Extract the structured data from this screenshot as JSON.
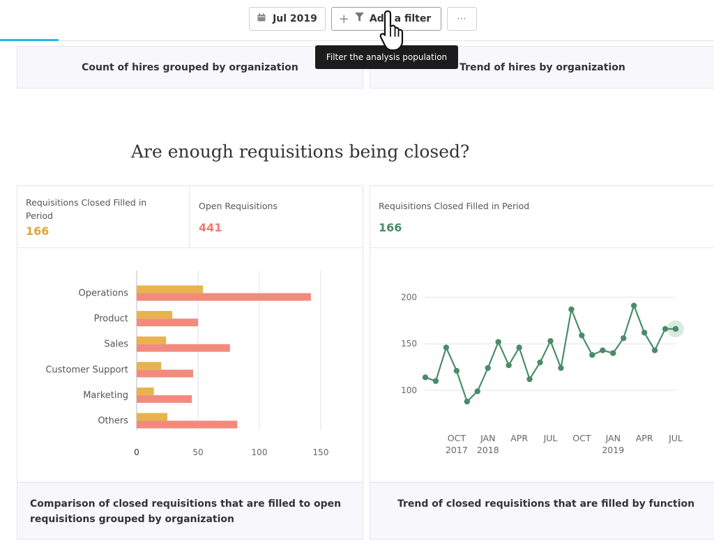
{
  "toolbar": {
    "date_label": "Jul 2019",
    "filter_label": "Add a filter",
    "more_label": "⋯",
    "icons": {
      "date": "calendar-icon",
      "filter": "funnel-icon",
      "plus": "plus-icon",
      "cursor": "hand-pointer-icon"
    }
  },
  "tooltip": {
    "text": "Filter the analysis population"
  },
  "top_cards": {
    "left_title": "Count of hires grouped by organization",
    "right_title": "Trend of hires by organization"
  },
  "section": {
    "heading": "Are enough requisitions being closed?"
  },
  "left_card": {
    "metric1": {
      "label": "Requisitions Closed Filled in Period",
      "value": "166"
    },
    "metric2": {
      "label": "Open Requisitions",
      "value": "441"
    },
    "footer": "Comparison of closed requisitions that are filled to open requisitions grouped by organization"
  },
  "right_card": {
    "metric": {
      "label": "Requisitions Closed Filled in Period",
      "value": "166"
    },
    "footer": "Trend of closed requisitions that are filled by function"
  },
  "colors": {
    "closed": "#e8b34f",
    "open": "#f28b7d",
    "trend": "#4a8c68",
    "accent": "#29b6e8",
    "closed_value": "#e0a43c",
    "open_value": "#ef7a6e",
    "trend_value": "#4a8c68"
  },
  "chart_data": [
    {
      "type": "bar",
      "orientation": "horizontal",
      "categories": [
        "Operations",
        "Product",
        "Sales",
        "Customer Support",
        "Marketing",
        "Others"
      ],
      "series": [
        {
          "name": "Requisitions Closed Filled in Period",
          "values": [
            54,
            29,
            24,
            20,
            14,
            25
          ]
        },
        {
          "name": "Open Requisitions",
          "values": [
            142,
            50,
            76,
            46,
            45,
            82
          ]
        }
      ],
      "xlim": [
        0,
        150
      ],
      "xticks": [
        0,
        50,
        100,
        150
      ],
      "grid": true
    },
    {
      "type": "line",
      "x": [
        "2017-07",
        "2017-08",
        "2017-09",
        "2017-10",
        "2017-11",
        "2017-12",
        "2018-01",
        "2018-02",
        "2018-03",
        "2018-04",
        "2018-05",
        "2018-06",
        "2018-07",
        "2018-08",
        "2018-09",
        "2018-10",
        "2018-11",
        "2018-12",
        "2019-01",
        "2019-02",
        "2019-03",
        "2019-04",
        "2019-05",
        "2019-06",
        "2019-07"
      ],
      "series": [
        {
          "name": "Requisitions Closed Filled in Period",
          "values": [
            114,
            110,
            146,
            121,
            88,
            99,
            124,
            152,
            127,
            146,
            112,
            130,
            153,
            124,
            187,
            159,
            138,
            143,
            140,
            156,
            191,
            162,
            143,
            166,
            166
          ]
        }
      ],
      "ylim": [
        80,
        200
      ],
      "yticks": [
        100,
        150,
        200
      ],
      "xtick_labels": [
        {
          "month": "OCT",
          "year": "2017"
        },
        {
          "month": "JAN",
          "year": "2018"
        },
        {
          "month": "APR",
          "year": ""
        },
        {
          "month": "JUL",
          "year": ""
        },
        {
          "month": "OCT",
          "year": ""
        },
        {
          "month": "JAN",
          "year": "2019"
        },
        {
          "month": "APR",
          "year": ""
        },
        {
          "month": "JUL",
          "year": ""
        }
      ],
      "highlight_last_point": true,
      "grid": true
    }
  ]
}
